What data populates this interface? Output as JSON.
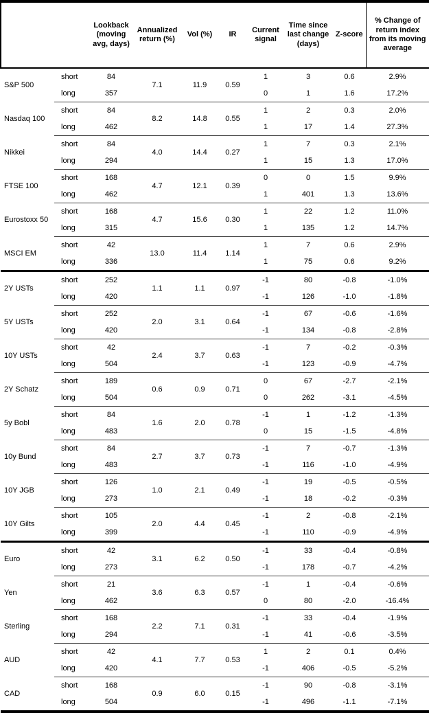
{
  "table": {
    "headers": [
      "",
      "",
      "Lookback (moving avg, days)",
      "Annualized return (%)",
      "Vol (%)",
      "IR",
      "Current signal",
      "Time since last change (days)",
      "Z-score",
      "% Change of return index from its moving average"
    ],
    "groups": [
      {
        "name": "S&P 500",
        "section_start": false,
        "annualized_return": "7.1",
        "vol": "11.9",
        "ir": "0.59",
        "rows": [
          {
            "horizon": "short",
            "lookback": "84",
            "signal": "1",
            "time_since": "3",
            "z_score": "0.6",
            "pct_change": "2.9%"
          },
          {
            "horizon": "long",
            "lookback": "357",
            "signal": "0",
            "time_since": "1",
            "z_score": "1.6",
            "pct_change": "17.2%"
          }
        ]
      },
      {
        "name": "Nasdaq 100",
        "section_start": false,
        "annualized_return": "8.2",
        "vol": "14.8",
        "ir": "0.55",
        "rows": [
          {
            "horizon": "short",
            "lookback": "84",
            "signal": "1",
            "time_since": "2",
            "z_score": "0.3",
            "pct_change": "2.0%"
          },
          {
            "horizon": "long",
            "lookback": "462",
            "signal": "1",
            "time_since": "17",
            "z_score": "1.4",
            "pct_change": "27.3%"
          }
        ]
      },
      {
        "name": "Nikkei",
        "section_start": false,
        "annualized_return": "4.0",
        "vol": "14.4",
        "ir": "0.27",
        "rows": [
          {
            "horizon": "short",
            "lookback": "84",
            "signal": "1",
            "time_since": "7",
            "z_score": "0.3",
            "pct_change": "2.1%"
          },
          {
            "horizon": "long",
            "lookback": "294",
            "signal": "1",
            "time_since": "15",
            "z_score": "1.3",
            "pct_change": "17.0%"
          }
        ]
      },
      {
        "name": "FTSE 100",
        "section_start": false,
        "annualized_return": "4.7",
        "vol": "12.1",
        "ir": "0.39",
        "rows": [
          {
            "horizon": "short",
            "lookback": "168",
            "signal": "0",
            "time_since": "0",
            "z_score": "1.5",
            "pct_change": "9.9%"
          },
          {
            "horizon": "long",
            "lookback": "462",
            "signal": "1",
            "time_since": "401",
            "z_score": "1.3",
            "pct_change": "13.6%"
          }
        ]
      },
      {
        "name": "Eurostoxx 50",
        "section_start": false,
        "annualized_return": "4.7",
        "vol": "15.6",
        "ir": "0.30",
        "rows": [
          {
            "horizon": "short",
            "lookback": "168",
            "signal": "1",
            "time_since": "22",
            "z_score": "1.2",
            "pct_change": "11.0%"
          },
          {
            "horizon": "long",
            "lookback": "315",
            "signal": "1",
            "time_since": "135",
            "z_score": "1.2",
            "pct_change": "14.7%"
          }
        ]
      },
      {
        "name": "MSCI EM",
        "section_start": false,
        "annualized_return": "13.0",
        "vol": "11.4",
        "ir": "1.14",
        "rows": [
          {
            "horizon": "short",
            "lookback": "42",
            "signal": "1",
            "time_since": "7",
            "z_score": "0.6",
            "pct_change": "2.9%"
          },
          {
            "horizon": "long",
            "lookback": "336",
            "signal": "1",
            "time_since": "75",
            "z_score": "0.6",
            "pct_change": "9.2%"
          }
        ]
      },
      {
        "name": "2Y USTs",
        "section_start": true,
        "annualized_return": "1.1",
        "vol": "1.1",
        "ir": "0.97",
        "rows": [
          {
            "horizon": "short",
            "lookback": "252",
            "signal": "-1",
            "time_since": "80",
            "z_score": "-0.8",
            "pct_change": "-1.0%"
          },
          {
            "horizon": "long",
            "lookback": "420",
            "signal": "-1",
            "time_since": "126",
            "z_score": "-1.0",
            "pct_change": "-1.8%"
          }
        ]
      },
      {
        "name": "5Y USTs",
        "section_start": false,
        "annualized_return": "2.0",
        "vol": "3.1",
        "ir": "0.64",
        "rows": [
          {
            "horizon": "short",
            "lookback": "252",
            "signal": "-1",
            "time_since": "67",
            "z_score": "-0.6",
            "pct_change": "-1.6%"
          },
          {
            "horizon": "long",
            "lookback": "420",
            "signal": "-1",
            "time_since": "134",
            "z_score": "-0.8",
            "pct_change": "-2.8%"
          }
        ]
      },
      {
        "name": "10Y USTs",
        "section_start": false,
        "annualized_return": "2.4",
        "vol": "3.7",
        "ir": "0.63",
        "rows": [
          {
            "horizon": "short",
            "lookback": "42",
            "signal": "-1",
            "time_since": "7",
            "z_score": "-0.2",
            "pct_change": "-0.3%"
          },
          {
            "horizon": "long",
            "lookback": "504",
            "signal": "-1",
            "time_since": "123",
            "z_score": "-0.9",
            "pct_change": "-4.7%"
          }
        ]
      },
      {
        "name": "2Y Schatz",
        "section_start": false,
        "annualized_return": "0.6",
        "vol": "0.9",
        "ir": "0.71",
        "rows": [
          {
            "horizon": "short",
            "lookback": "189",
            "signal": "0",
            "time_since": "67",
            "z_score": "-2.7",
            "pct_change": "-2.1%"
          },
          {
            "horizon": "long",
            "lookback": "504",
            "signal": "0",
            "time_since": "262",
            "z_score": "-3.1",
            "pct_change": "-4.5%"
          }
        ]
      },
      {
        "name": "5y Bobl",
        "section_start": false,
        "annualized_return": "1.6",
        "vol": "2.0",
        "ir": "0.78",
        "rows": [
          {
            "horizon": "short",
            "lookback": "84",
            "signal": "-1",
            "time_since": "1",
            "z_score": "-1.2",
            "pct_change": "-1.3%"
          },
          {
            "horizon": "long",
            "lookback": "483",
            "signal": "0",
            "time_since": "15",
            "z_score": "-1.5",
            "pct_change": "-4.8%"
          }
        ]
      },
      {
        "name": "10y Bund",
        "section_start": false,
        "annualized_return": "2.7",
        "vol": "3.7",
        "ir": "0.73",
        "rows": [
          {
            "horizon": "short",
            "lookback": "84",
            "signal": "-1",
            "time_since": "7",
            "z_score": "-0.7",
            "pct_change": "-1.3%"
          },
          {
            "horizon": "long",
            "lookback": "483",
            "signal": "-1",
            "time_since": "116",
            "z_score": "-1.0",
            "pct_change": "-4.9%"
          }
        ]
      },
      {
        "name": "10Y JGB",
        "section_start": false,
        "annualized_return": "1.0",
        "vol": "2.1",
        "ir": "0.49",
        "rows": [
          {
            "horizon": "short",
            "lookback": "126",
            "signal": "-1",
            "time_since": "19",
            "z_score": "-0.5",
            "pct_change": "-0.5%"
          },
          {
            "horizon": "long",
            "lookback": "273",
            "signal": "-1",
            "time_since": "18",
            "z_score": "-0.2",
            "pct_change": "-0.3%"
          }
        ]
      },
      {
        "name": "10Y Gilts",
        "section_start": false,
        "annualized_return": "2.0",
        "vol": "4.4",
        "ir": "0.45",
        "rows": [
          {
            "horizon": "short",
            "lookback": "105",
            "signal": "-1",
            "time_since": "2",
            "z_score": "-0.8",
            "pct_change": "-2.1%"
          },
          {
            "horizon": "long",
            "lookback": "399",
            "signal": "-1",
            "time_since": "110",
            "z_score": "-0.9",
            "pct_change": "-4.9%"
          }
        ]
      },
      {
        "name": "Euro",
        "section_start": true,
        "annualized_return": "3.1",
        "vol": "6.2",
        "ir": "0.50",
        "rows": [
          {
            "horizon": "short",
            "lookback": "42",
            "signal": "-1",
            "time_since": "33",
            "z_score": "-0.4",
            "pct_change": "-0.8%"
          },
          {
            "horizon": "long",
            "lookback": "273",
            "signal": "-1",
            "time_since": "178",
            "z_score": "-0.7",
            "pct_change": "-4.2%"
          }
        ]
      },
      {
        "name": "Yen",
        "section_start": false,
        "annualized_return": "3.6",
        "vol": "6.3",
        "ir": "0.57",
        "rows": [
          {
            "horizon": "short",
            "lookback": "21",
            "signal": "-1",
            "time_since": "1",
            "z_score": "-0.4",
            "pct_change": "-0.6%"
          },
          {
            "horizon": "long",
            "lookback": "462",
            "signal": "0",
            "time_since": "80",
            "z_score": "-2.0",
            "pct_change": "-16.4%"
          }
        ]
      },
      {
        "name": "Sterling",
        "section_start": false,
        "annualized_return": "2.2",
        "vol": "7.1",
        "ir": "0.31",
        "rows": [
          {
            "horizon": "short",
            "lookback": "168",
            "signal": "-1",
            "time_since": "33",
            "z_score": "-0.4",
            "pct_change": "-1.9%"
          },
          {
            "horizon": "long",
            "lookback": "294",
            "signal": "-1",
            "time_since": "41",
            "z_score": "-0.6",
            "pct_change": "-3.5%"
          }
        ]
      },
      {
        "name": "AUD",
        "section_start": false,
        "annualized_return": "4.1",
        "vol": "7.7",
        "ir": "0.53",
        "rows": [
          {
            "horizon": "short",
            "lookback": "42",
            "signal": "1",
            "time_since": "2",
            "z_score": "0.1",
            "pct_change": "0.4%"
          },
          {
            "horizon": "long",
            "lookback": "420",
            "signal": "-1",
            "time_since": "406",
            "z_score": "-0.5",
            "pct_change": "-5.2%"
          }
        ]
      },
      {
        "name": "CAD",
        "section_start": false,
        "annualized_return": "0.9",
        "vol": "6.0",
        "ir": "0.15",
        "rows": [
          {
            "horizon": "short",
            "lookback": "168",
            "signal": "-1",
            "time_since": "90",
            "z_score": "-0.8",
            "pct_change": "-3.1%"
          },
          {
            "horizon": "long",
            "lookback": "504",
            "signal": "-1",
            "time_since": "496",
            "z_score": "-1.1",
            "pct_change": "-7.1%"
          }
        ]
      }
    ]
  }
}
